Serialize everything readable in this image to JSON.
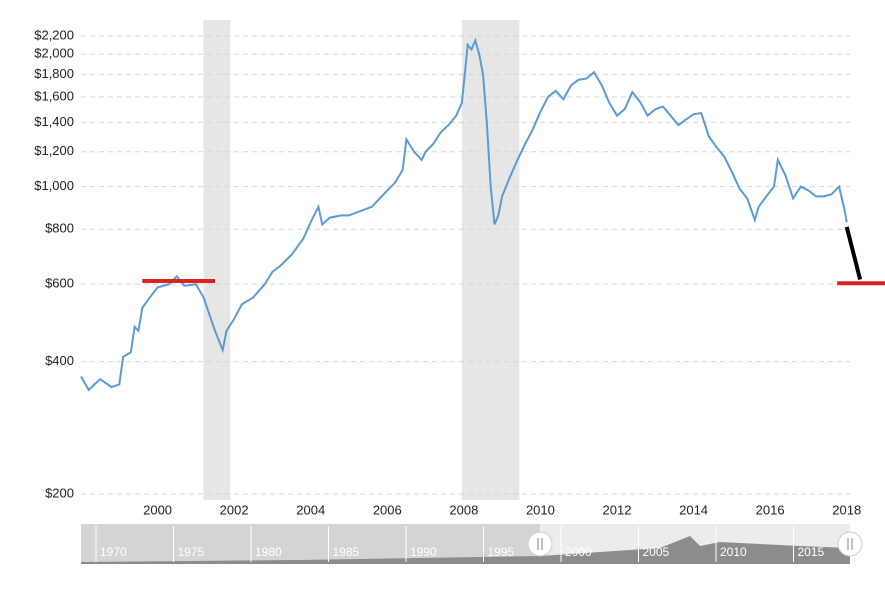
{
  "chart_data": {
    "type": "line",
    "log_scale": true,
    "grid": true,
    "x": [
      1998.0,
      1998.2,
      1998.5,
      1998.8,
      1999.0,
      1999.1,
      1999.3,
      1999.4,
      1999.5,
      1999.6,
      1999.8,
      2000.0,
      2000.3,
      2000.5,
      2000.7,
      2001.0,
      2001.2,
      2001.5,
      2001.7,
      2001.8,
      2002.0,
      2002.2,
      2002.5,
      2002.8,
      2003.0,
      2003.2,
      2003.5,
      2003.8,
      2004.0,
      2004.2,
      2004.3,
      2004.5,
      2004.8,
      2005.0,
      2005.3,
      2005.6,
      2005.9,
      2006.2,
      2006.4,
      2006.5,
      2006.7,
      2006.9,
      2007.0,
      2007.2,
      2007.4,
      2007.6,
      2007.8,
      2007.95,
      2008.1,
      2008.2,
      2008.3,
      2008.4,
      2008.5,
      2008.6,
      2008.7,
      2008.8,
      2008.9,
      2009.0,
      2009.2,
      2009.4,
      2009.6,
      2009.8,
      2010.0,
      2010.2,
      2010.4,
      2010.6,
      2010.8,
      2011.0,
      2011.2,
      2011.4,
      2011.6,
      2011.8,
      2012.0,
      2012.2,
      2012.4,
      2012.6,
      2012.8,
      2013.0,
      2013.2,
      2013.4,
      2013.6,
      2013.8,
      2014.0,
      2014.2,
      2014.4,
      2014.6,
      2014.8,
      2015.0,
      2015.2,
      2015.4,
      2015.6,
      2015.7,
      2015.9,
      2016.1,
      2016.2,
      2016.4,
      2016.6,
      2016.8,
      2017.0,
      2017.2,
      2017.4,
      2017.6,
      2017.8,
      2017.95,
      2018.0
    ],
    "series": [
      {
        "color": "#5b9bd5",
        "values": [
          370,
          345,
          365,
          350,
          355,
          410,
          420,
          480,
          470,
          530,
          560,
          590,
          600,
          625,
          595,
          600,
          560,
          470,
          425,
          470,
          500,
          540,
          560,
          600,
          640,
          660,
          700,
          760,
          830,
          900,
          820,
          850,
          860,
          860,
          880,
          900,
          960,
          1020,
          1090,
          1280,
          1200,
          1150,
          1200,
          1250,
          1330,
          1380,
          1450,
          1550,
          2100,
          2050,
          2150,
          2000,
          1800,
          1400,
          1000,
          820,
          860,
          950,
          1050,
          1150,
          1250,
          1350,
          1480,
          1600,
          1650,
          1580,
          1700,
          1750,
          1760,
          1820,
          1700,
          1550,
          1450,
          1500,
          1640,
          1560,
          1450,
          1500,
          1520,
          1450,
          1380,
          1420,
          1460,
          1470,
          1300,
          1230,
          1170,
          1080,
          990,
          940,
          840,
          900,
          950,
          1000,
          1150,
          1060,
          940,
          1000,
          980,
          950,
          950,
          960,
          1000,
          880,
          830
        ]
      }
    ],
    "xlim": [
      1998,
      2019
    ],
    "xticks": [
      2000,
      2002,
      2004,
      2006,
      2008,
      2010,
      2012,
      2014,
      2016,
      2018
    ],
    "ylim": [
      200,
      2200
    ],
    "yticks": [
      {
        "value": 200,
        "label": "$200"
      },
      {
        "value": 400,
        "label": "$400"
      },
      {
        "value": 600,
        "label": "$600"
      },
      {
        "value": 800,
        "label": "$800"
      },
      {
        "value": 1000,
        "label": "$1,000"
      },
      {
        "value": 1200,
        "label": "$1,200"
      },
      {
        "value": 1400,
        "label": "$1,400"
      },
      {
        "value": 1600,
        "label": "$1,600"
      },
      {
        "value": 1800,
        "label": "$1,800"
      },
      {
        "value": 2000,
        "label": "$2,000"
      },
      {
        "value": 2200,
        "label": "$2,200"
      }
    ],
    "shaded_ranges": [
      [
        2001.2,
        2001.9
      ],
      [
        2007.95,
        2009.45
      ]
    ],
    "reference_lines": [
      {
        "value": 610,
        "x": [
          1999.6,
          2001.5
        ],
        "color": "#dd2222"
      },
      {
        "value": 603,
        "x": [
          2017.75,
          2019
        ],
        "color": "#dd2222"
      }
    ],
    "projection": {
      "x": [
        2018.0,
        2018.35
      ],
      "values": [
        810,
        615
      ],
      "color": "#000000"
    },
    "navigator": {
      "labels": [
        "1970",
        "1975",
        "1980",
        "1985",
        "1990",
        "1995",
        "2000",
        "2005",
        "2010",
        "2015"
      ]
    }
  }
}
